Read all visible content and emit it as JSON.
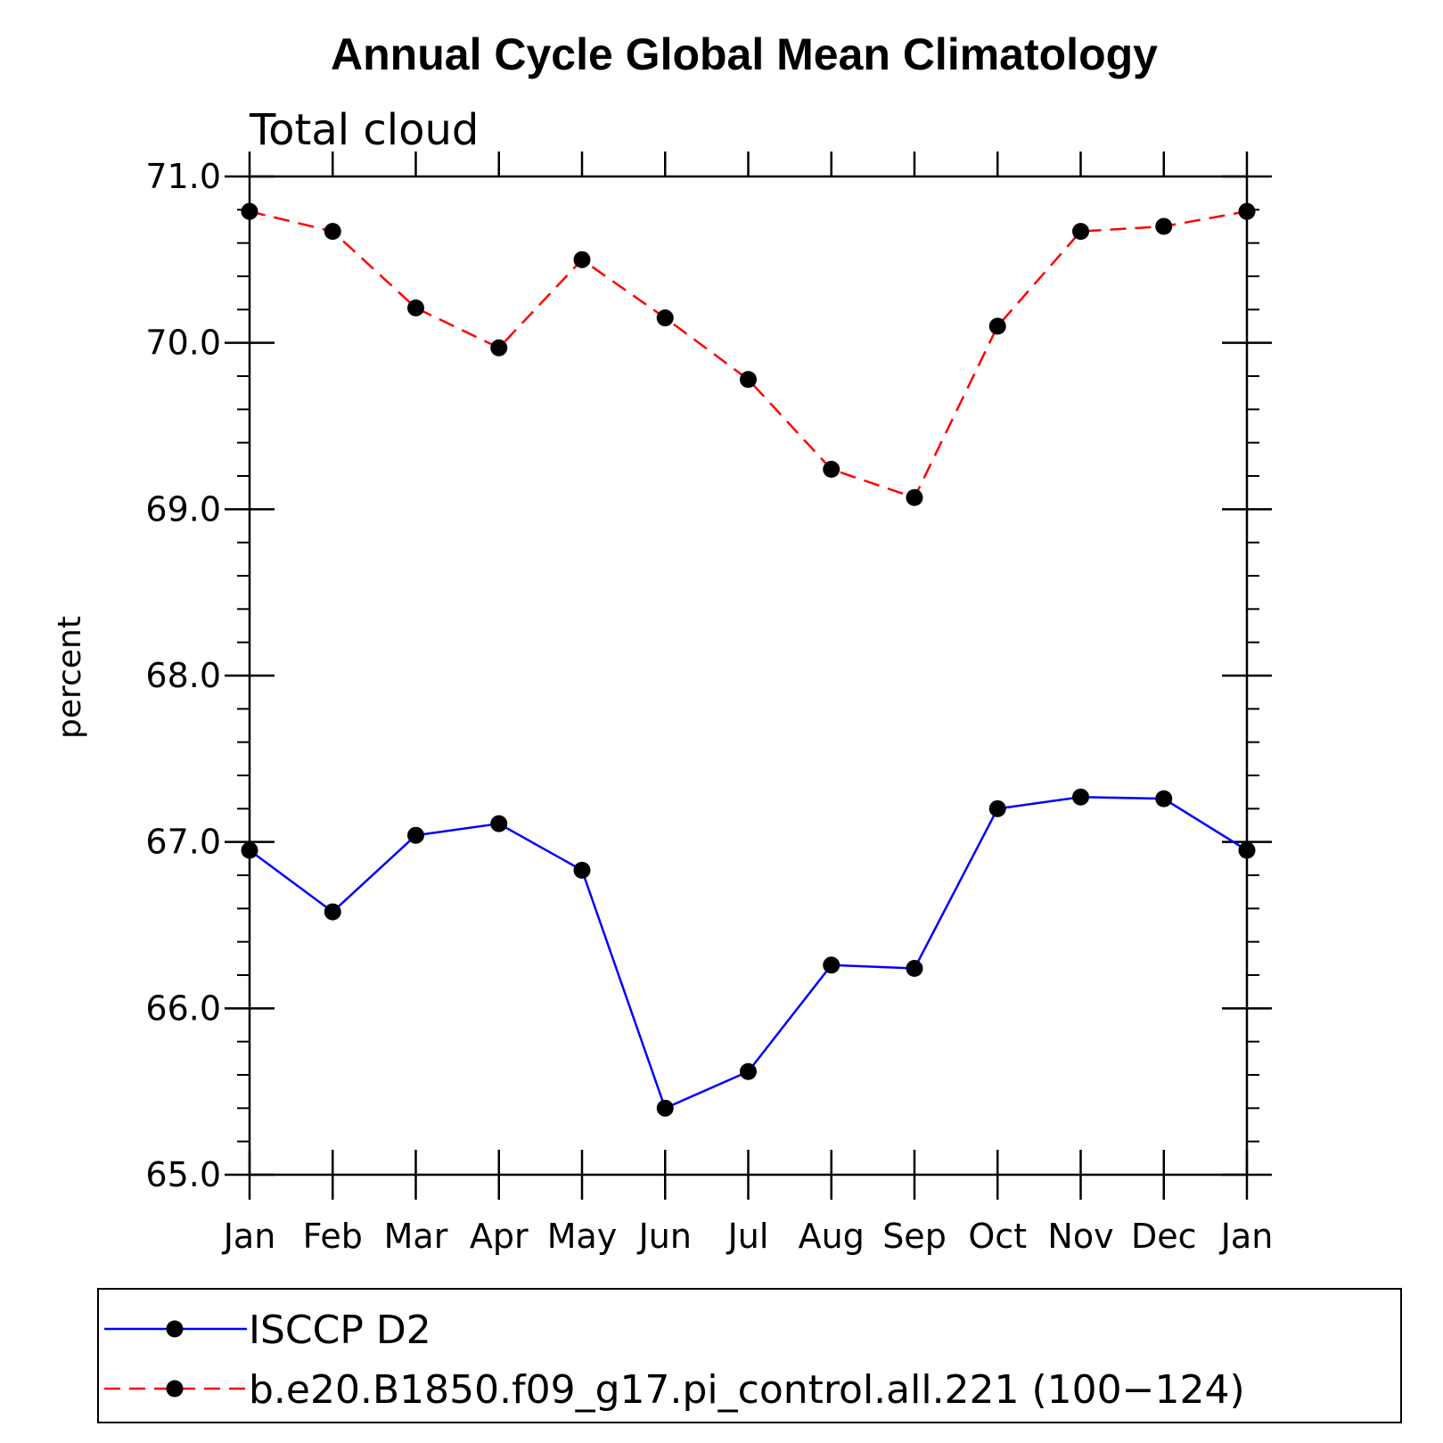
{
  "chart_data": {
    "type": "line",
    "title": "Annual Cycle Global Mean Climatology",
    "subtitle": "Total cloud",
    "xlabel": "",
    "ylabel": "percent",
    "categories": [
      "Jan",
      "Feb",
      "Mar",
      "Apr",
      "May",
      "Jun",
      "Jul",
      "Aug",
      "Sep",
      "Oct",
      "Nov",
      "Dec",
      "Jan"
    ],
    "ylim": [
      65.0,
      71.0
    ],
    "yticks": [
      "65.0",
      "66.0",
      "67.0",
      "68.0",
      "69.0",
      "70.0",
      "71.0"
    ],
    "grid": false,
    "legend_position": "bottom",
    "series": [
      {
        "name": "ISCCP D2",
        "color": "#0000ff",
        "line_style": "solid",
        "marker": "filled-circle",
        "values": [
          66.95,
          66.58,
          67.04,
          67.11,
          66.83,
          65.4,
          65.62,
          66.26,
          66.24,
          67.2,
          67.27,
          67.26,
          66.95
        ]
      },
      {
        "name": "b.e20.B1850.f09_g17.pi_control.all.221 (100−124)",
        "color": "#ff0000",
        "line_style": "dashed",
        "marker": "filled-circle",
        "values": [
          70.79,
          70.67,
          70.21,
          69.97,
          70.5,
          70.15,
          69.78,
          69.24,
          69.07,
          70.1,
          70.67,
          70.7,
          70.79
        ]
      }
    ]
  }
}
